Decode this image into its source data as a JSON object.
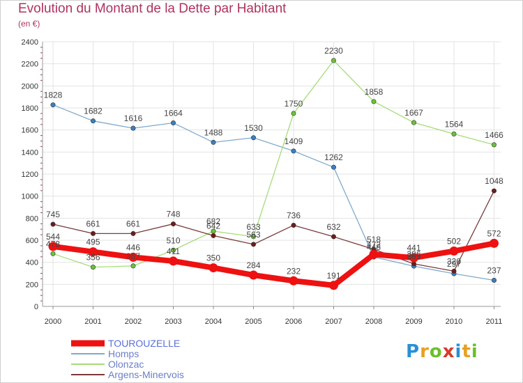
{
  "title": "Evolution du Montant de la Dette par Habitant",
  "unit": "(en €)",
  "logo": {
    "text": "Proxiti",
    "colors": [
      "#2a8fd6",
      "#e8a020",
      "#6cbf2a",
      "#d63a2a",
      "#2a8fd6",
      "#e8a020",
      "#6cbf2a"
    ]
  },
  "chart_data": {
    "type": "line",
    "x": [
      "2000",
      "2001",
      "2002",
      "2003",
      "2004",
      "2005",
      "2006",
      "2007",
      "2008",
      "2009",
      "2010",
      "2011"
    ],
    "ylim": [
      0,
      2400
    ],
    "yticks": [
      0,
      200,
      400,
      600,
      800,
      1000,
      1200,
      1400,
      1600,
      1800,
      2000,
      2200,
      2400
    ],
    "grid": true,
    "legend_position": "bottom-left",
    "series": [
      {
        "name": "Homps",
        "color": "#7fa9cc",
        "marker": "#3a80c0",
        "values": [
          1828,
          1682,
          1616,
          1664,
          1488,
          1530,
          1409,
          1262,
          448,
          365,
          297,
          237
        ]
      },
      {
        "name": "Olonzac",
        "color": "#a6dc78",
        "marker": "#6cc23a",
        "values": [
          478,
          356,
          367,
          510,
          682,
          633,
          1750,
          2230,
          1858,
          1667,
          1564,
          1466
        ]
      },
      {
        "name": "Argens-Minervois",
        "color": "#7a3b3b",
        "marker": "#6a1e1e",
        "values": [
          745,
          661,
          661,
          748,
          642,
          563,
          736,
          632,
          518,
          386,
          320,
          1048
        ]
      },
      {
        "name": "TOUROUZELLE",
        "color": "#ee1111",
        "marker": "#ee1111",
        "values": [
          544,
          495,
          446,
          411,
          350,
          284,
          232,
          191,
          472,
          441,
          502,
          572
        ]
      }
    ],
    "data_labels": [
      {
        "series": 0,
        "values": [
          "1828",
          "1682",
          "1616",
          "1664",
          "1488",
          "1530",
          "1409",
          "1262",
          "448",
          "365",
          "297",
          "237"
        ]
      },
      {
        "series": 1,
        "values": [
          "478",
          "356",
          "367",
          "510",
          "682",
          "633",
          "1750",
          "2230",
          "1858",
          "1667",
          "1564",
          "1466"
        ]
      },
      {
        "series": 2,
        "values": [
          "745",
          "661",
          "661",
          "748",
          "642",
          "563",
          "736",
          "632",
          "518",
          "386",
          "320",
          "1048"
        ]
      },
      {
        "series": 3,
        "values": [
          "544",
          "495",
          "446",
          "411",
          "350",
          "284",
          "232",
          "191",
          "472",
          "441",
          "502",
          "572"
        ]
      }
    ],
    "legend": [
      "TOUROUZELLE",
      "Homps",
      "Olonzac",
      "Argens-Minervois"
    ]
  }
}
